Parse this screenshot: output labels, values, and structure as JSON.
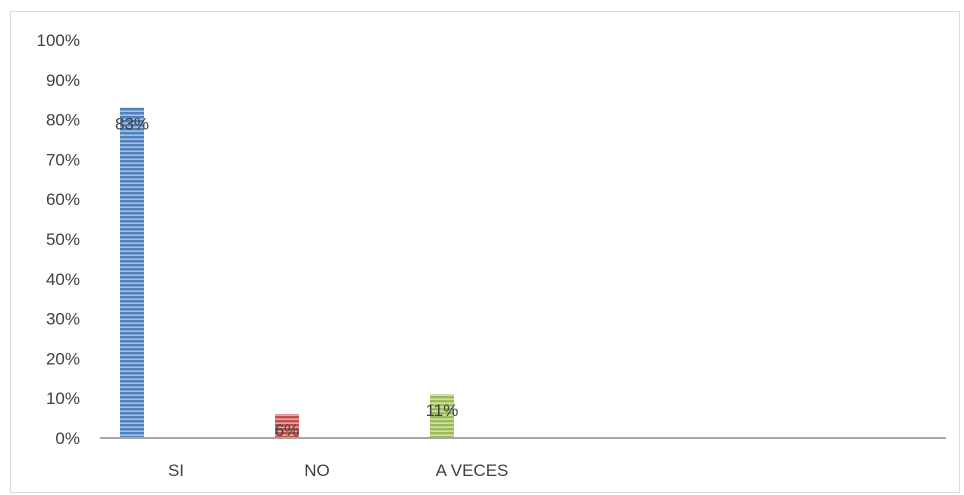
{
  "chart_data": {
    "type": "bar",
    "categories": [
      "SI",
      "NO",
      "A VECES"
    ],
    "values": [
      83,
      6,
      11
    ],
    "data_labels": [
      "83%",
      "6%",
      "11%"
    ],
    "colors": [
      "#4f81bd",
      "#c0504d",
      "#9bbb59"
    ],
    "stripe_colors": [
      "#a7c0e0",
      "#e3a9a8",
      "#cde0ad"
    ],
    "pattern": "horizontal-stripes",
    "ylim": [
      0,
      100
    ],
    "yticks": [
      0,
      10,
      20,
      30,
      40,
      50,
      60,
      70,
      80,
      90,
      100
    ],
    "ytick_labels": [
      "0%",
      "10%",
      "20%",
      "30%",
      "40%",
      "50%",
      "60%",
      "70%",
      "80%",
      "90%",
      "100%"
    ],
    "grid": false,
    "legend": "none",
    "title": "",
    "xlabel": "",
    "ylabel": ""
  }
}
